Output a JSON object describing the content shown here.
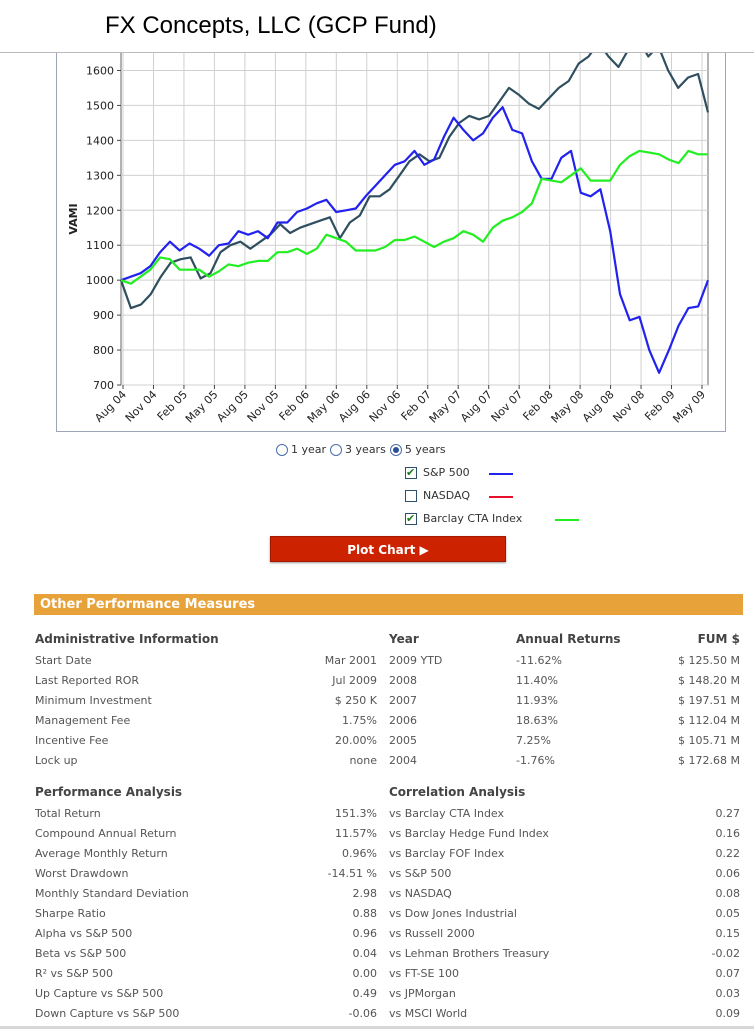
{
  "title": "FX Concepts, LLC (GCP Fund)",
  "chart": {
    "ylabel": "VAMI",
    "ylim": [
      700,
      1650
    ],
    "yticks": [
      700,
      800,
      900,
      1000,
      1100,
      1200,
      1300,
      1400,
      1500,
      1600
    ],
    "xticks": [
      "Aug 04",
      "Nov 04",
      "Feb 05",
      "May 05",
      "Aug 05",
      "Nov 05",
      "Feb 06",
      "May 06",
      "Aug 06",
      "Nov 06",
      "Feb 07",
      "May 07",
      "Aug 07",
      "Nov 07",
      "Feb 08",
      "May 08",
      "Aug 08",
      "Nov 08",
      "Feb 09",
      "May 09"
    ],
    "colors": {
      "fund": "#2f4f5f",
      "sp500": "#2222ee",
      "nasdaq": "#e8102a",
      "cta": "#22ee22"
    }
  },
  "chart_data": {
    "type": "line",
    "ylabel": "VAMI",
    "ylim": [
      700,
      1650
    ],
    "x_start": "Aug 04",
    "x_end": "Jul 09",
    "series": [
      {
        "color": "#2f4f5f",
        "values": [
          1000,
          920,
          930,
          960,
          1010,
          1050,
          1060,
          1065,
          1005,
          1020,
          1080,
          1100,
          1110,
          1090,
          1110,
          1130,
          1160,
          1135,
          1150,
          1160,
          1170,
          1180,
          1120,
          1165,
          1185,
          1240,
          1240,
          1260,
          1300,
          1340,
          1360,
          1340,
          1350,
          1410,
          1450,
          1470,
          1460,
          1470,
          1510,
          1550,
          1530,
          1505,
          1490,
          1520,
          1550,
          1570,
          1620,
          1640,
          1680,
          1640,
          1610,
          1660,
          1690,
          1640,
          1670,
          1600,
          1550,
          1580,
          1590,
          1480
        ]
      },
      {
        "name": "S&P 500",
        "color": "#2222ee",
        "values": [
          1000,
          1010,
          1020,
          1040,
          1080,
          1110,
          1085,
          1105,
          1090,
          1070,
          1100,
          1105,
          1140,
          1130,
          1140,
          1120,
          1165,
          1165,
          1195,
          1205,
          1220,
          1230,
          1195,
          1200,
          1205,
          1240,
          1270,
          1300,
          1330,
          1340,
          1370,
          1330,
          1345,
          1410,
          1465,
          1430,
          1400,
          1420,
          1465,
          1495,
          1430,
          1420,
          1340,
          1290,
          1290,
          1350,
          1370,
          1250,
          1240,
          1260,
          1140,
          960,
          885,
          895,
          800,
          735,
          800,
          870,
          920,
          925,
          1000
        ]
      },
      {
        "name": "Barclay CTA Index",
        "color": "#22ee22",
        "values": [
          1000,
          990,
          1010,
          1030,
          1065,
          1060,
          1030,
          1030,
          1030,
          1010,
          1025,
          1045,
          1040,
          1050,
          1055,
          1055,
          1080,
          1080,
          1090,
          1075,
          1090,
          1130,
          1120,
          1110,
          1085,
          1085,
          1085,
          1095,
          1115,
          1115,
          1125,
          1110,
          1095,
          1110,
          1120,
          1140,
          1130,
          1110,
          1150,
          1170,
          1180,
          1195,
          1220,
          1290,
          1285,
          1280,
          1300,
          1320,
          1285,
          1285,
          1285,
          1330,
          1355,
          1370,
          1365,
          1360,
          1345,
          1335,
          1370,
          1360,
          1360
        ]
      }
    ]
  },
  "range": {
    "options": [
      "1 year",
      "3 years",
      "5 years"
    ],
    "selected": 2
  },
  "legend": [
    {
      "label": "S&P 500",
      "checked": true,
      "color": "#2222ee"
    },
    {
      "label": "NASDAQ",
      "checked": false,
      "color": "#e8102a"
    },
    {
      "label": "Barclay CTA Index",
      "checked": true,
      "color": "#22ee22"
    }
  ],
  "plot_button": "Plot Chart ▶",
  "section_title": "Other Performance Measures",
  "admin": {
    "heading": "Administrative Information",
    "rows": [
      {
        "label": "Start Date",
        "value": "Mar 2001"
      },
      {
        "label": "Last Reported ROR",
        "value": "Jul 2009"
      },
      {
        "label": "Minimum Investment",
        "value": "$ 250 K"
      },
      {
        "label": "Management Fee",
        "value": "1.75%"
      },
      {
        "label": "Incentive Fee",
        "value": "20.00%"
      },
      {
        "label": "Lock up",
        "value": "none"
      }
    ]
  },
  "annual": {
    "headings": {
      "year": "Year",
      "returns": "Annual Returns",
      "fum": "FUM $"
    },
    "rows": [
      {
        "year": "2009 YTD",
        "ret": "-11.62%",
        "fum": "$ 125.50 M"
      },
      {
        "year": "2008",
        "ret": "11.40%",
        "fum": "$ 148.20 M"
      },
      {
        "year": "2007",
        "ret": "11.93%",
        "fum": "$ 197.51 M"
      },
      {
        "year": "2006",
        "ret": "18.63%",
        "fum": "$ 112.04 M"
      },
      {
        "year": "2005",
        "ret": "7.25%",
        "fum": "$ 105.71 M"
      },
      {
        "year": "2004",
        "ret": "-1.76%",
        "fum": "$ 172.68 M"
      }
    ]
  },
  "performance": {
    "heading": "Performance Analysis",
    "rows": [
      {
        "label": "Total Return",
        "value": "151.3%"
      },
      {
        "label": "Compound Annual Return",
        "value": "11.57%"
      },
      {
        "label": "Average Monthly Return",
        "value": "0.96%"
      },
      {
        "label": "Worst Drawdown",
        "value": "-14.51 %"
      },
      {
        "label": "Monthly Standard Deviation",
        "value": "2.98"
      },
      {
        "label": "Sharpe Ratio",
        "value": "0.88"
      },
      {
        "label": "Alpha vs S&P 500",
        "value": "0.96"
      },
      {
        "label": "Beta vs S&P 500",
        "value": "0.04"
      },
      {
        "label": "R² vs S&P 500",
        "value": "0.00"
      },
      {
        "label": "Up Capture vs S&P 500",
        "value": "0.49"
      },
      {
        "label": "Down Capture vs S&P 500",
        "value": "-0.06"
      }
    ]
  },
  "correlation": {
    "heading": "Correlation Analysis",
    "rows": [
      {
        "label": "vs Barclay CTA Index",
        "value": "0.27"
      },
      {
        "label": "vs Barclay Hedge Fund Index",
        "value": "0.16"
      },
      {
        "label": "vs Barclay FOF Index",
        "value": "0.22"
      },
      {
        "label": "vs S&P 500",
        "value": "0.06"
      },
      {
        "label": "vs NASDAQ",
        "value": "0.08"
      },
      {
        "label": "vs Dow Jones Industrial",
        "value": "0.05"
      },
      {
        "label": "vs Russell 2000",
        "value": "0.15"
      },
      {
        "label": "vs Lehman Brothers Treasury",
        "value": "-0.02"
      },
      {
        "label": "vs FT-SE 100",
        "value": "0.07"
      },
      {
        "label": "vs JPMorgan",
        "value": "0.03"
      },
      {
        "label": "vs MSCI World",
        "value": "0.09"
      }
    ]
  }
}
